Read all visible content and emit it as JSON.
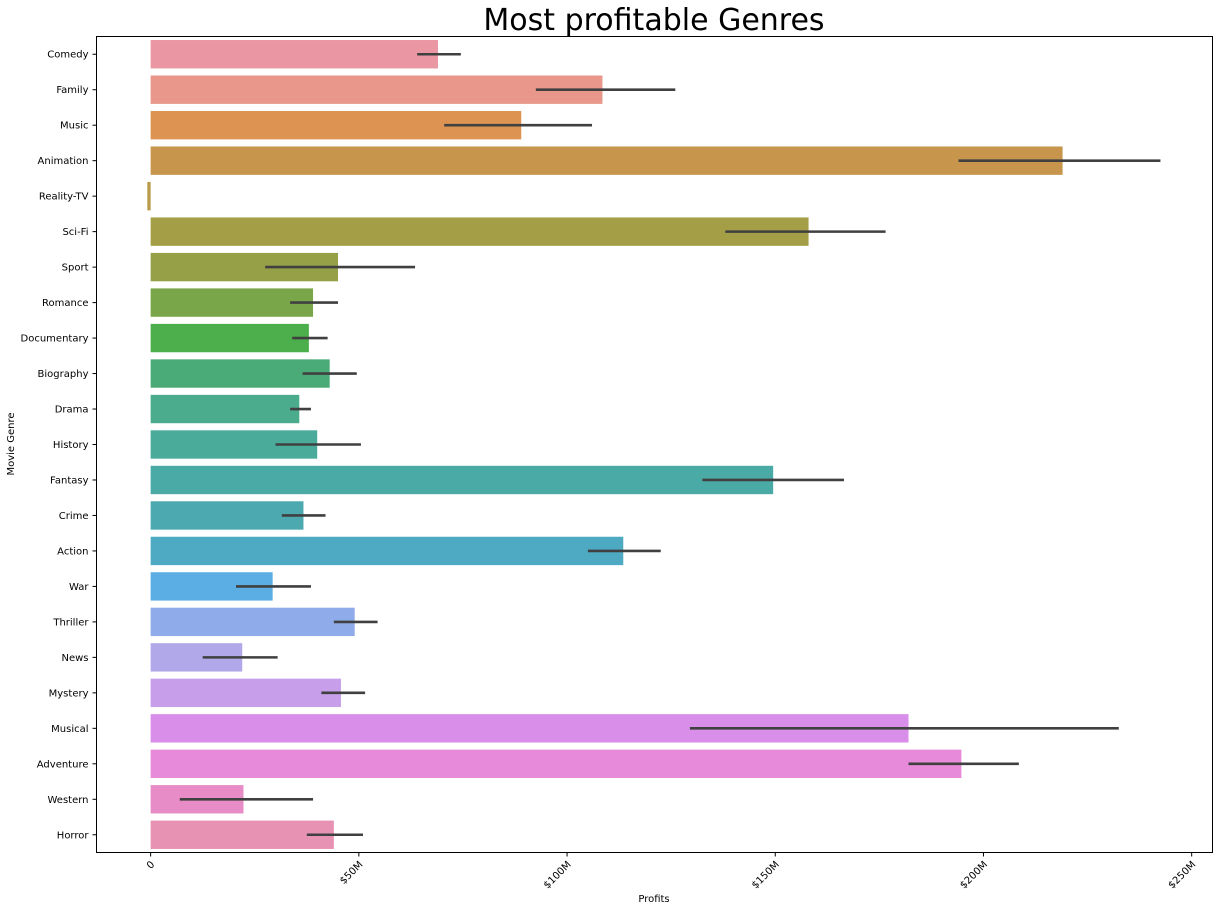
{
  "chart_data": {
    "type": "bar",
    "orientation": "horizontal",
    "title": "Most profitable Genres",
    "xlabel": "Profits",
    "ylabel": "Movie Genre",
    "xlim": [
      -13,
      255
    ],
    "x_ticks": [
      {
        "value": 0,
        "label": "0"
      },
      {
        "value": 50,
        "label": "$50M"
      },
      {
        "value": 100,
        "label": "$100M"
      },
      {
        "value": 150,
        "label": "$150M"
      },
      {
        "value": 200,
        "label": "$200M"
      },
      {
        "value": 250,
        "label": "$250M"
      }
    ],
    "x_tick_rotation": -45,
    "grid": false,
    "categories": [
      "Comedy",
      "Family",
      "Music",
      "Animation",
      "Reality-TV",
      "Sci-Fi",
      "Sport",
      "Romance",
      "Documentary",
      "Biography",
      "Drama",
      "History",
      "Fantasy",
      "Crime",
      "Action",
      "War",
      "Thriller",
      "News",
      "Mystery",
      "Musical",
      "Adventure",
      "Western",
      "Horror"
    ],
    "values": [
      69,
      108.5,
      89,
      219,
      -0.8,
      158,
      45,
      39,
      38,
      43,
      35.7,
      40,
      149.5,
      36.7,
      113.5,
      29.3,
      49,
      22,
      45.7,
      182,
      194.7,
      22.3,
      44
    ],
    "error_low": [
      64,
      92.5,
      70.5,
      194,
      -0.8,
      138,
      27.5,
      33.5,
      34,
      36.5,
      33.5,
      30,
      132.5,
      31.5,
      105,
      20.5,
      44,
      12.5,
      41,
      129.5,
      182,
      7,
      37.5
    ],
    "error_high": [
      74.5,
      126,
      106,
      242.5,
      -0.8,
      176.5,
      63.5,
      45,
      42.5,
      49.5,
      38.5,
      50.5,
      166.5,
      42,
      122.5,
      38.5,
      54.5,
      30.5,
      51.5,
      232.5,
      208.5,
      39,
      51
    ],
    "colors": [
      "#ea96a3",
      "#e8978a",
      "#dd9452",
      "#c7964c",
      "#b89b4b",
      "#a49e46",
      "#95a047",
      "#78a648",
      "#4caf4c",
      "#4aab78",
      "#4aac8c",
      "#4aab9b",
      "#4aaaa6",
      "#4ca9b0",
      "#4ea9c2",
      "#5baee3",
      "#8fabea",
      "#b1a8ea",
      "#c69eea",
      "#d98ee9",
      "#e68ad9",
      "#e88cc7",
      "#e892b3"
    ]
  }
}
